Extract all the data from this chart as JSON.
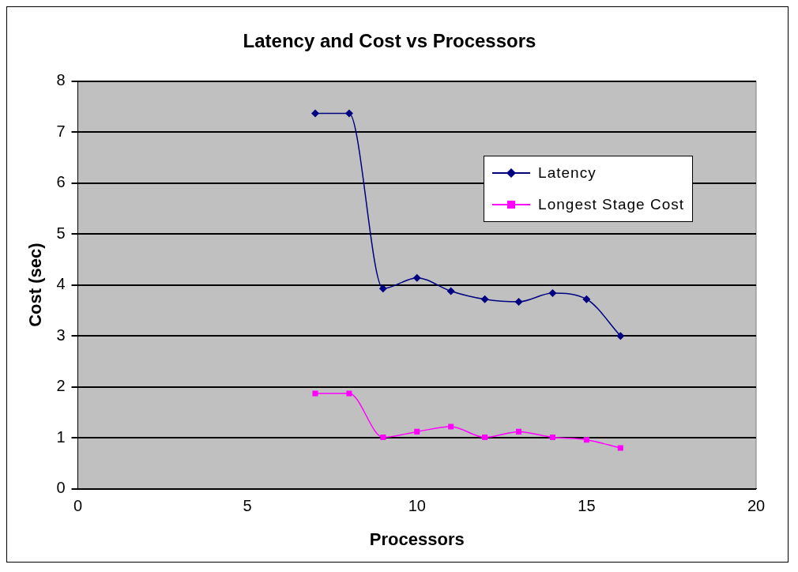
{
  "chart_data": {
    "type": "line",
    "title": "Latency and Cost vs Processors",
    "xlabel": "Processors",
    "ylabel": "Cost (sec)",
    "x": [
      7,
      8,
      9,
      10,
      11,
      12,
      13,
      14,
      15,
      16
    ],
    "series": [
      {
        "name": "Latency",
        "color": "#000080",
        "marker": "diamond",
        "values": [
          7.37,
          7.37,
          3.93,
          4.14,
          3.88,
          3.72,
          3.67,
          3.84,
          3.72,
          3.0
        ]
      },
      {
        "name": "Longest Stage Cost",
        "color": "#ff00ff",
        "marker": "square",
        "values": [
          1.87,
          1.87,
          1.01,
          1.12,
          1.22,
          1.01,
          1.12,
          1.01,
          0.96,
          0.8
        ]
      }
    ],
    "xlim": [
      0,
      20
    ],
    "xticks": [
      0,
      5,
      10,
      15,
      20
    ],
    "ylim": [
      0,
      8
    ],
    "yticks": [
      0,
      1,
      2,
      3,
      4,
      5,
      6,
      7,
      8
    ],
    "grid": "y",
    "legend": "top right",
    "line_style": "solid"
  }
}
